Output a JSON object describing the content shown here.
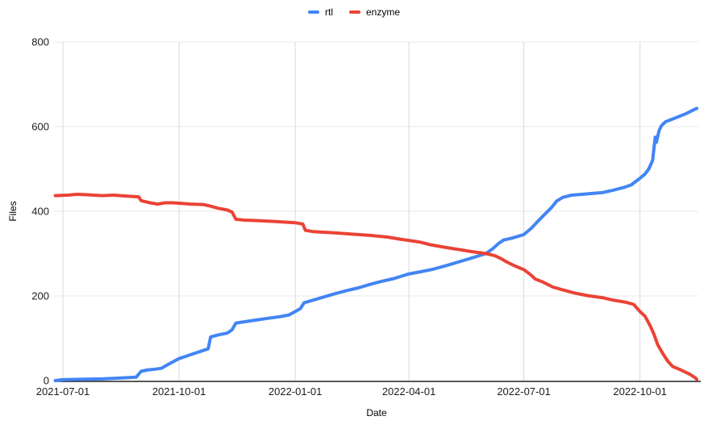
{
  "legend": {
    "items": [
      {
        "label": "rtl",
        "color": "#4285f4"
      },
      {
        "label": "enzyme",
        "color": "#ea4335"
      }
    ]
  },
  "colors": {
    "grid_horizontal": "#e8e8e8",
    "grid_vertical": "#d9d9d9",
    "axis_line": "#212121",
    "tick_text": "#1c1c1c"
  },
  "chart_data": {
    "type": "line",
    "title": "",
    "xlabel": "Date",
    "ylabel": "Files",
    "ylim": [
      0,
      800
    ],
    "y_ticks": [
      0,
      200,
      400,
      600,
      800
    ],
    "x_ticks": [
      "2021-07-01",
      "2021-10-01",
      "2022-01-01",
      "2022-04-01",
      "2022-07-01",
      "2022-10-01"
    ],
    "x_range": [
      "2021-06-25",
      "2022-11-16"
    ],
    "grid": true,
    "legend_position": "top",
    "series": [
      {
        "name": "rtl",
        "color": "#4285f4",
        "points": [
          [
            "2021-06-25",
            0
          ],
          [
            "2021-07-01",
            2
          ],
          [
            "2021-07-15",
            3
          ],
          [
            "2021-08-01",
            4
          ],
          [
            "2021-08-15",
            6
          ],
          [
            "2021-08-28",
            8
          ],
          [
            "2021-09-01",
            22
          ],
          [
            "2021-09-06",
            25
          ],
          [
            "2021-09-12",
            27
          ],
          [
            "2021-09-17",
            29
          ],
          [
            "2021-09-21",
            36
          ],
          [
            "2021-09-26",
            44
          ],
          [
            "2021-10-01",
            52
          ],
          [
            "2021-10-06",
            57
          ],
          [
            "2021-10-11",
            62
          ],
          [
            "2021-10-16",
            67
          ],
          [
            "2021-10-20",
            71
          ],
          [
            "2021-10-24",
            75
          ],
          [
            "2021-10-26",
            103
          ],
          [
            "2021-11-01",
            108
          ],
          [
            "2021-11-08",
            112
          ],
          [
            "2021-11-12",
            120
          ],
          [
            "2021-11-15",
            136
          ],
          [
            "2021-11-22",
            139
          ],
          [
            "2021-12-01",
            143
          ],
          [
            "2021-12-10",
            147
          ],
          [
            "2021-12-20",
            151
          ],
          [
            "2021-12-27",
            155
          ],
          [
            "2022-01-01",
            163
          ],
          [
            "2022-01-05",
            170
          ],
          [
            "2022-01-08",
            184
          ],
          [
            "2022-01-15",
            190
          ],
          [
            "2022-01-22",
            196
          ],
          [
            "2022-02-01",
            205
          ],
          [
            "2022-02-10",
            212
          ],
          [
            "2022-02-20",
            219
          ],
          [
            "2022-03-01",
            227
          ],
          [
            "2022-03-10",
            234
          ],
          [
            "2022-03-20",
            241
          ],
          [
            "2022-04-01",
            252
          ],
          [
            "2022-04-10",
            257
          ],
          [
            "2022-04-20",
            263
          ],
          [
            "2022-05-01",
            272
          ],
          [
            "2022-05-10",
            280
          ],
          [
            "2022-05-20",
            289
          ],
          [
            "2022-06-01",
            300
          ],
          [
            "2022-06-07",
            313
          ],
          [
            "2022-06-11",
            324
          ],
          [
            "2022-06-15",
            332
          ],
          [
            "2022-06-21",
            336
          ],
          [
            "2022-07-01",
            345
          ],
          [
            "2022-07-07",
            360
          ],
          [
            "2022-07-11",
            373
          ],
          [
            "2022-07-17",
            391
          ],
          [
            "2022-07-23",
            409
          ],
          [
            "2022-07-27",
            424
          ],
          [
            "2022-08-01",
            433
          ],
          [
            "2022-08-08",
            438
          ],
          [
            "2022-08-16",
            440
          ],
          [
            "2022-09-01",
            444
          ],
          [
            "2022-09-10",
            450
          ],
          [
            "2022-09-18",
            456
          ],
          [
            "2022-09-24",
            462
          ],
          [
            "2022-10-01",
            478
          ],
          [
            "2022-10-05",
            488
          ],
          [
            "2022-10-08",
            500
          ],
          [
            "2022-10-11",
            520
          ],
          [
            "2022-10-13",
            575
          ],
          [
            "2022-10-14",
            563
          ],
          [
            "2022-10-16",
            590
          ],
          [
            "2022-10-18",
            602
          ],
          [
            "2022-10-21",
            611
          ],
          [
            "2022-10-26",
            617
          ],
          [
            "2022-11-01",
            624
          ],
          [
            "2022-11-06",
            630
          ],
          [
            "2022-11-10",
            636
          ],
          [
            "2022-11-15",
            643
          ]
        ]
      },
      {
        "name": "enzyme",
        "color": "#ea4335",
        "points": [
          [
            "2021-06-25",
            437
          ],
          [
            "2021-07-05",
            438
          ],
          [
            "2021-07-12",
            440
          ],
          [
            "2021-07-20",
            439
          ],
          [
            "2021-08-01",
            437
          ],
          [
            "2021-08-10",
            438
          ],
          [
            "2021-08-20",
            436
          ],
          [
            "2021-08-30",
            434
          ],
          [
            "2021-09-01",
            425
          ],
          [
            "2021-09-08",
            420
          ],
          [
            "2021-09-14",
            417
          ],
          [
            "2021-09-20",
            420
          ],
          [
            "2021-09-26",
            420
          ],
          [
            "2021-10-01",
            419
          ],
          [
            "2021-10-10",
            417
          ],
          [
            "2021-10-20",
            416
          ],
          [
            "2021-10-26",
            412
          ],
          [
            "2021-11-01",
            407
          ],
          [
            "2021-11-08",
            403
          ],
          [
            "2021-11-12",
            398
          ],
          [
            "2021-11-15",
            381
          ],
          [
            "2021-11-22",
            379
          ],
          [
            "2021-12-01",
            378
          ],
          [
            "2021-12-15",
            376
          ],
          [
            "2022-01-01",
            373
          ],
          [
            "2022-01-07",
            370
          ],
          [
            "2022-01-09",
            355
          ],
          [
            "2022-01-15",
            352
          ],
          [
            "2022-02-01",
            349
          ],
          [
            "2022-02-15",
            346
          ],
          [
            "2022-03-01",
            343
          ],
          [
            "2022-03-15",
            339
          ],
          [
            "2022-03-25",
            334
          ],
          [
            "2022-04-01",
            331
          ],
          [
            "2022-04-10",
            327
          ],
          [
            "2022-04-18",
            321
          ],
          [
            "2022-05-01",
            314
          ],
          [
            "2022-05-10",
            310
          ],
          [
            "2022-05-20",
            305
          ],
          [
            "2022-06-01",
            300
          ],
          [
            "2022-06-08",
            295
          ],
          [
            "2022-06-13",
            288
          ],
          [
            "2022-06-17",
            281
          ],
          [
            "2022-06-23",
            272
          ],
          [
            "2022-07-01",
            262
          ],
          [
            "2022-07-06",
            251
          ],
          [
            "2022-07-10",
            240
          ],
          [
            "2022-07-16",
            233
          ],
          [
            "2022-07-24",
            221
          ],
          [
            "2022-08-01",
            214
          ],
          [
            "2022-08-10",
            207
          ],
          [
            "2022-08-20",
            201
          ],
          [
            "2022-09-01",
            196
          ],
          [
            "2022-09-10",
            190
          ],
          [
            "2022-09-20",
            185
          ],
          [
            "2022-09-26",
            180
          ],
          [
            "2022-10-01",
            163
          ],
          [
            "2022-10-05",
            152
          ],
          [
            "2022-10-09",
            130
          ],
          [
            "2022-10-12",
            110
          ],
          [
            "2022-10-15",
            85
          ],
          [
            "2022-10-19",
            64
          ],
          [
            "2022-10-23",
            46
          ],
          [
            "2022-10-27",
            33
          ],
          [
            "2022-11-01",
            27
          ],
          [
            "2022-11-06",
            20
          ],
          [
            "2022-11-10",
            14
          ],
          [
            "2022-11-14",
            6
          ],
          [
            "2022-11-15",
            3
          ]
        ]
      }
    ]
  }
}
